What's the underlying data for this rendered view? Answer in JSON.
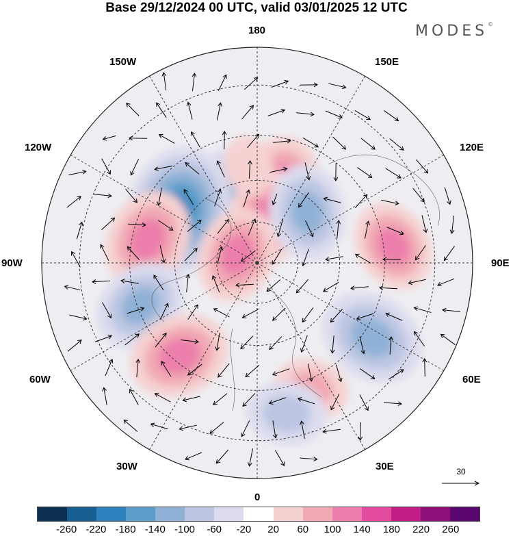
{
  "title": "Base 29/12/2024 00 UTC, valid 03/01/2025 12 UTC",
  "brand": "MODES",
  "brand_mark": "©",
  "longitude_labels": {
    "lon_180": "180",
    "lon_150e": "150E",
    "lon_120e": "120E",
    "lon_90e": "90E",
    "lon_60e": "60E",
    "lon_30e": "30E",
    "lon_0": "0",
    "lon_30w": "30W",
    "lon_60w": "60W",
    "lon_90w": "90W",
    "lon_120w": "120W",
    "lon_150w": "150W"
  },
  "reference_vector": {
    "value": "30"
  },
  "colorbar": {
    "labels": [
      "-260",
      "-220",
      "-180",
      "-140",
      "-100",
      "-60",
      "-20",
      "20",
      "60",
      "100",
      "140",
      "180",
      "220",
      "260"
    ],
    "colors": [
      "#0b2f4e",
      "#175f93",
      "#2d81bd",
      "#5a9dca",
      "#90b1d6",
      "#bcc6e2",
      "#dcdcee",
      "#ffffff",
      "#f6d1d1",
      "#f1a9b4",
      "#ec7fab",
      "#e34b9f",
      "#c21c86",
      "#8e1079",
      "#5a0670"
    ]
  },
  "anomaly_centers": [
    {
      "lon_deg": -160,
      "lat_deg": 63,
      "value": -100
    },
    {
      "lon_deg": -123,
      "lat_deg": 56,
      "value": -180
    },
    {
      "lon_deg": -102,
      "lat_deg": 50,
      "value": 120
    },
    {
      "lon_deg": -70,
      "lat_deg": 46,
      "value": -110
    },
    {
      "lon_deg": -40,
      "lat_deg": 47,
      "value": 120
    },
    {
      "lon_deg": 162,
      "lat_deg": 60,
      "value": 110
    },
    {
      "lon_deg": 168,
      "lat_deg": 73,
      "value": 110
    },
    {
      "lon_deg": 135,
      "lat_deg": 64,
      "value": -110
    },
    {
      "lon_deg": 97,
      "lat_deg": 42,
      "value": 100
    },
    {
      "lon_deg": 57,
      "lat_deg": 42,
      "value": -130
    },
    {
      "lon_deg": 23,
      "lat_deg": 42,
      "value": 70
    },
    {
      "lon_deg": 11,
      "lat_deg": 37,
      "value": -80
    },
    {
      "lon_deg": -175,
      "lat_deg": 55,
      "value": 40
    },
    {
      "lon_deg": -112,
      "lat_deg": 82,
      "value": 110
    }
  ]
}
